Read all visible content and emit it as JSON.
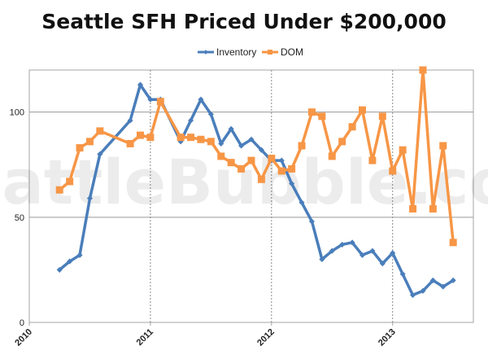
{
  "chart_data": {
    "type": "line",
    "title": "Seattle SFH Priced Under $200,000",
    "watermark": "SeattleBubble.com",
    "xlabel": "",
    "ylabel": "",
    "ylim": [
      0,
      120
    ],
    "xlim": [
      "2010-01-01",
      "2013-09-01"
    ],
    "x_ticks": [
      "2010",
      "2011",
      "2012",
      "2013"
    ],
    "y_ticks": [
      0,
      50,
      100
    ],
    "grid": true,
    "legend_position": "top-center",
    "x": [
      "2010-04",
      "2010-05",
      "2010-06",
      "2010-07",
      "2010-08",
      "2010-09",
      "2010-10",
      "2010-11",
      "2010-12",
      "2011-01",
      "2011-02",
      "2011-03",
      "2011-04",
      "2011-05",
      "2011-06",
      "2011-07",
      "2011-08",
      "2011-09",
      "2011-10",
      "2011-11",
      "2011-12",
      "2012-01",
      "2012-02",
      "2012-03",
      "2012-04",
      "2012-05",
      "2012-06",
      "2012-07",
      "2012-08",
      "2012-09",
      "2012-10",
      "2012-11",
      "2012-12",
      "2013-01",
      "2013-02",
      "2013-03",
      "2013-04",
      "2013-05",
      "2013-06",
      "2013-07",
      "2013-08"
    ],
    "series": [
      {
        "name": "Inventory",
        "color": "#4a7ebb",
        "values": [
          25,
          29,
          32,
          59,
          80,
          null,
          null,
          96,
          113,
          106,
          106,
          null,
          86,
          96,
          106,
          99,
          85,
          92,
          84,
          87,
          82,
          77,
          77,
          66,
          57,
          48,
          30,
          34,
          37,
          38,
          32,
          34,
          28,
          33,
          23,
          13,
          15,
          20,
          17,
          20,
          null
        ]
      },
      {
        "name": "DOM",
        "color": "#f79646",
        "values": [
          63,
          67,
          83,
          86,
          91,
          null,
          null,
          85,
          89,
          88,
          105,
          null,
          88,
          88,
          87,
          86,
          79,
          76,
          73,
          77,
          68,
          78,
          72,
          73,
          84,
          100,
          98,
          79,
          86,
          93,
          101,
          77,
          98,
          72,
          82,
          54,
          120,
          54,
          84,
          38,
          null
        ]
      }
    ]
  }
}
